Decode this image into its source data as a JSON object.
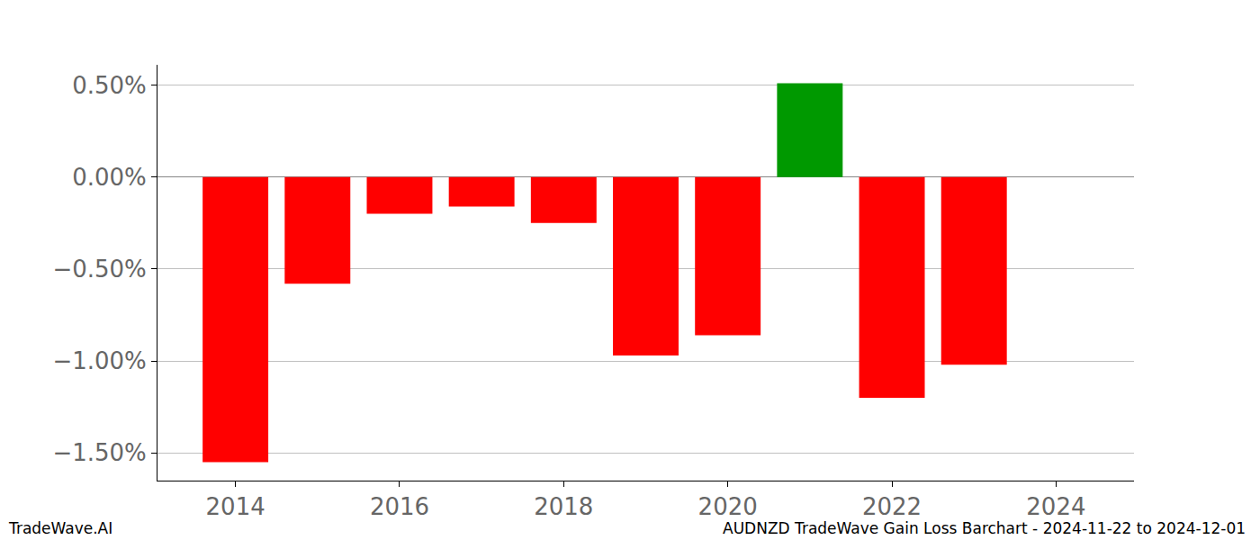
{
  "chart_data": {
    "type": "bar",
    "title": "AUDNZD TradeWave Gain Loss Barchart - 2024-11-22 to 2024-12-01",
    "annotations": [
      "TradeWave.AI"
    ],
    "x": [
      2014,
      2015,
      2016,
      2017,
      2018,
      2019,
      2020,
      2021,
      2022,
      2023
    ],
    "values": [
      -1.55,
      -0.58,
      -0.2,
      -0.16,
      -0.25,
      -0.97,
      -0.86,
      0.51,
      -1.2,
      -1.02
    ],
    "colors": [
      "#ff0000",
      "#ff0000",
      "#ff0000",
      "#ff0000",
      "#ff0000",
      "#ff0000",
      "#ff0000",
      "#009900",
      "#ff0000",
      "#ff0000"
    ],
    "xlim": [
      2013.05,
      2024.95
    ],
    "xticks": [
      2014,
      2016,
      2018,
      2020,
      2022,
      2024
    ],
    "ylim": [
      -1.65,
      0.61
    ],
    "yticks": [
      {
        "value": -1.5,
        "label": "−1.50%"
      },
      {
        "value": -1.0,
        "label": "−1.00%"
      },
      {
        "value": -0.5,
        "label": "−0.50%"
      },
      {
        "value": 0,
        "label": "0.00%"
      },
      {
        "value": 0.5,
        "label": "0.50%"
      }
    ],
    "grid": true
  }
}
